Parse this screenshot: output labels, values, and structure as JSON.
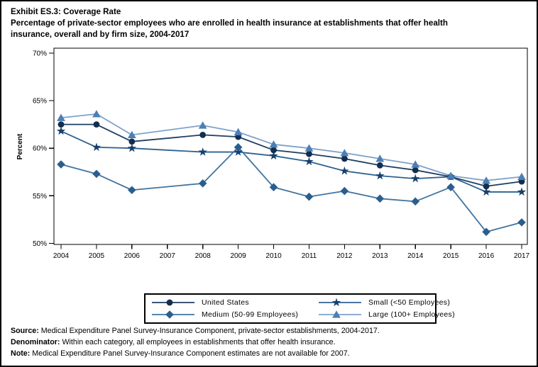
{
  "title": {
    "exhibit": "Exhibit ES.3: Coverage Rate",
    "subtitle_line1": "Percentage of private-sector employees who are enrolled in health insurance at establishments that offer health",
    "subtitle_line2": "insurance, overall and by firm size, 2004-2017"
  },
  "chart_data": {
    "type": "line",
    "title": "Exhibit ES.3: Coverage Rate",
    "subtitle": "Percentage of private-sector employees who are enrolled in health insurance at establishments that offer health insurance, overall and by firm size, 2004-2017",
    "xlabel": "",
    "ylabel": "Percent",
    "ylim": [
      50,
      70
    ],
    "yticks": [
      50,
      55,
      60,
      65,
      70
    ],
    "ytick_suffix": "%",
    "grid": false,
    "legend_position": "bottom",
    "x": [
      2004,
      2005,
      2006,
      2007,
      2008,
      2009,
      2010,
      2011,
      2012,
      2013,
      2014,
      2015,
      2016,
      2017
    ],
    "series": [
      {
        "name": "United States",
        "marker": "circle",
        "line_color": "#1F3E60",
        "marker_color": "#122E4F",
        "values": [
          62.5,
          62.5,
          60.7,
          null,
          61.4,
          61.2,
          59.8,
          59.4,
          58.9,
          58.2,
          57.7,
          57.0,
          56.0,
          56.5
        ]
      },
      {
        "name": "Small (<50 Employees)",
        "marker": "star",
        "line_color": "#2F6191",
        "marker_color": "#16406C",
        "values": [
          61.8,
          60.1,
          60.0,
          null,
          59.6,
          59.6,
          59.2,
          58.6,
          57.6,
          57.1,
          56.8,
          57.0,
          55.4,
          55.4
        ]
      },
      {
        "name": "Medium (50-99 Employees)",
        "marker": "diamond",
        "line_color": "#41749F",
        "marker_color": "#2A5E8E",
        "values": [
          58.3,
          57.3,
          55.6,
          null,
          56.3,
          60.1,
          55.9,
          54.9,
          55.5,
          54.7,
          54.4,
          55.9,
          51.2,
          52.2
        ]
      },
      {
        "name": "Large (100+ Employees)",
        "marker": "triangle",
        "line_color": "#7EA2C9",
        "marker_color": "#4C7FB5",
        "values": [
          63.2,
          63.6,
          61.4,
          null,
          62.4,
          61.7,
          60.4,
          60.0,
          59.5,
          58.9,
          58.3,
          57.1,
          56.6,
          57.0
        ]
      }
    ]
  },
  "legend": {
    "items": [
      {
        "label": "United States",
        "series": 0
      },
      {
        "label": "Small (<50 Employees)",
        "series": 1
      },
      {
        "label": "Medium (50-99 Employees)",
        "series": 2
      },
      {
        "label": "Large (100+ Employees)",
        "series": 3
      }
    ]
  },
  "footer": {
    "source_label": "Source:",
    "source_text": " Medical Expenditure Panel Survey-Insurance Component, private-sector establishments, 2004-2017.",
    "denominator_label": "Denominator:",
    "denominator_text": " Within each category, all employees in establishments that offer health insurance.",
    "note_label": "Note:",
    "note_text": " Medical Expenditure Panel Survey-Insurance Component estimates are not available for 2007."
  }
}
